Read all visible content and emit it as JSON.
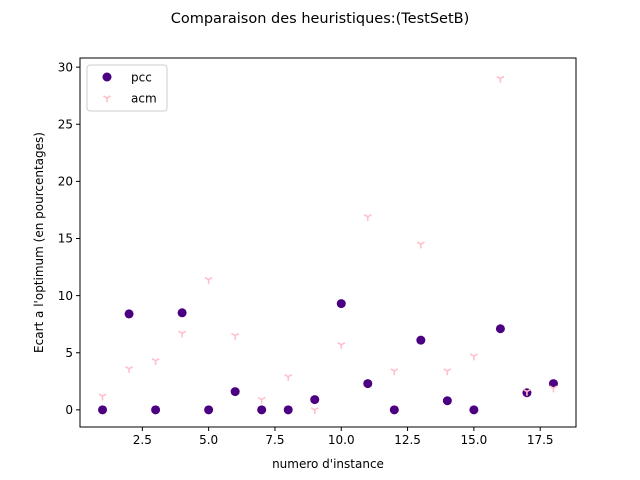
{
  "chart_data": {
    "type": "scatter",
    "title": "Comparaison des heuristiques:(TestSetB)",
    "xlabel": "numero d'instance",
    "ylabel": "Ecart a l'optimum (en pourcentages)",
    "xlim": [
      0.15,
      18.85
    ],
    "ylim": [
      -1.5,
      30.8
    ],
    "xticks": [
      2.5,
      5.0,
      7.5,
      10.0,
      12.5,
      15.0,
      17.5
    ],
    "xtick_labels": [
      "2.5",
      "5.0",
      "7.5",
      "10.0",
      "12.5",
      "15.0",
      "17.5"
    ],
    "yticks": [
      0,
      5,
      10,
      15,
      20,
      25,
      30
    ],
    "ytick_labels": [
      "0",
      "5",
      "10",
      "15",
      "20",
      "25",
      "30"
    ],
    "grid": false,
    "legend_position": "top-left",
    "series": [
      {
        "name": "pcc",
        "marker": "circle",
        "color": "#4b0082",
        "x": [
          1,
          2,
          3,
          4,
          5,
          6,
          7,
          8,
          9,
          10,
          11,
          12,
          13,
          14,
          15,
          16,
          17,
          18
        ],
        "y": [
          0.0,
          8.4,
          0.0,
          8.5,
          0.0,
          1.6,
          0.0,
          0.0,
          0.9,
          9.3,
          2.3,
          0.0,
          6.1,
          0.8,
          0.0,
          7.1,
          1.5,
          2.3
        ]
      },
      {
        "name": "acm",
        "marker": "tri_down",
        "color": "#ffc0cb",
        "x": [
          1,
          2,
          3,
          4,
          5,
          6,
          7,
          8,
          9,
          10,
          11,
          12,
          13,
          14,
          15,
          16,
          17,
          18
        ],
        "y": [
          1.2,
          3.6,
          4.3,
          6.7,
          11.4,
          6.5,
          0.9,
          2.9,
          0.0,
          5.7,
          16.9,
          3.4,
          14.5,
          3.4,
          4.7,
          29.0,
          1.6,
          1.9
        ]
      }
    ]
  }
}
